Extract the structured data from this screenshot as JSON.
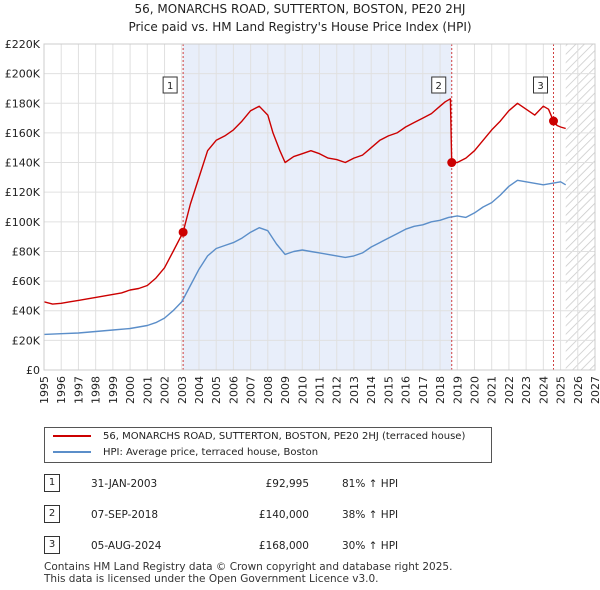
{
  "title_line1": "56, MONARCHS ROAD, SUTTERTON, BOSTON, PE20 2HJ",
  "title_line2": "Price paid vs. HM Land Registry's House Price Index (HPI)",
  "chart_data": {
    "type": "line",
    "xlim": [
      1995,
      2027
    ],
    "ylim": [
      0,
      220000
    ],
    "x_ticks": [
      1995,
      1996,
      1997,
      1998,
      1999,
      2000,
      2001,
      2002,
      2003,
      2004,
      2005,
      2006,
      2007,
      2008,
      2009,
      2010,
      2011,
      2012,
      2013,
      2014,
      2015,
      2016,
      2017,
      2018,
      2019,
      2020,
      2021,
      2022,
      2023,
      2024,
      2025,
      2026,
      2027
    ],
    "y_ticks": [
      0,
      20000,
      40000,
      60000,
      80000,
      100000,
      120000,
      140000,
      160000,
      180000,
      200000,
      220000
    ],
    "y_tick_labels": [
      "£0",
      "£20K",
      "£40K",
      "£60K",
      "£80K",
      "£100K",
      "£120K",
      "£140K",
      "£160K",
      "£180K",
      "£200K",
      "£220K"
    ],
    "ownership_shade": [
      2003.08,
      2018.68
    ],
    "data_end": 2025.3,
    "series": [
      {
        "name": "56, MONARCHS ROAD, SUTTERTON, BOSTON, PE20 2HJ (terraced house)",
        "color": "#cc0000",
        "x": [
          1995,
          1995.5,
          1996,
          1996.5,
          1997,
          1997.5,
          1998,
          1998.5,
          1999,
          1999.5,
          2000,
          2000.5,
          2001,
          2001.5,
          2002,
          2002.5,
          2003.08,
          2003.5,
          2004,
          2004.5,
          2005,
          2005.5,
          2006,
          2006.5,
          2007,
          2007.5,
          2008,
          2008.3,
          2008.7,
          2009,
          2009.5,
          2010,
          2010.5,
          2011,
          2011.5,
          2012,
          2012.5,
          2013,
          2013.5,
          2014,
          2014.5,
          2015,
          2015.5,
          2016,
          2016.5,
          2017,
          2017.5,
          2018,
          2018.3,
          2018.6,
          2018.68,
          2019,
          2019.5,
          2020,
          2020.5,
          2021,
          2021.5,
          2022,
          2022.5,
          2023,
          2023.5,
          2024,
          2024.3,
          2024.59,
          2024.8,
          2025,
          2025.3
        ],
        "values": [
          46000,
          44500,
          45000,
          46000,
          47000,
          48000,
          49000,
          50000,
          51000,
          52000,
          54000,
          55000,
          57000,
          62000,
          69000,
          80000,
          92995,
          112000,
          130000,
          148000,
          155000,
          158000,
          162000,
          168000,
          175000,
          178000,
          172000,
          160000,
          148000,
          140000,
          144000,
          146000,
          148000,
          146000,
          143000,
          142000,
          140000,
          143000,
          145000,
          150000,
          155000,
          158000,
          160000,
          164000,
          167000,
          170000,
          173000,
          178000,
          181000,
          183000,
          140000,
          140000,
          143000,
          148000,
          155000,
          162000,
          168000,
          175000,
          180000,
          176000,
          172000,
          178000,
          176000,
          168000,
          165000,
          164000,
          163000
        ]
      },
      {
        "name": "HPI: Average price, terraced house, Boston",
        "color": "#5b8ec9",
        "x": [
          1995,
          1996,
          1997,
          1998,
          1999,
          2000,
          2001,
          2001.5,
          2002,
          2002.5,
          2003,
          2003.5,
          2004,
          2004.5,
          2005,
          2005.5,
          2006,
          2006.5,
          2007,
          2007.5,
          2008,
          2008.5,
          2009,
          2009.5,
          2010,
          2010.5,
          2011,
          2011.5,
          2012,
          2012.5,
          2013,
          2013.5,
          2014,
          2014.5,
          2015,
          2015.5,
          2016,
          2016.5,
          2017,
          2017.5,
          2018,
          2018.5,
          2019,
          2019.5,
          2020,
          2020.5,
          2021,
          2021.5,
          2022,
          2022.5,
          2023,
          2023.5,
          2024,
          2024.5,
          2025,
          2025.3
        ],
        "values": [
          24000,
          24500,
          25000,
          26000,
          27000,
          28000,
          30000,
          32000,
          35000,
          40000,
          46000,
          57000,
          68000,
          77000,
          82000,
          84000,
          86000,
          89000,
          93000,
          96000,
          94000,
          85000,
          78000,
          80000,
          81000,
          80000,
          79000,
          78000,
          77000,
          76000,
          77000,
          79000,
          83000,
          86000,
          89000,
          92000,
          95000,
          97000,
          98000,
          100000,
          101000,
          103000,
          104000,
          103000,
          106000,
          110000,
          113000,
          118000,
          124000,
          128000,
          127000,
          126000,
          125000,
          126000,
          127000,
          125000
        ]
      }
    ],
    "transactions": [
      {
        "label": "1",
        "x": 2003.08,
        "y": 92995,
        "date": "31-JAN-2003",
        "price": "£92,995",
        "hpi": "81% ↑ HPI"
      },
      {
        "label": "2",
        "x": 2018.68,
        "y": 140000,
        "date": "07-SEP-2018",
        "price": "£140,000",
        "hpi": "38% ↑ HPI"
      },
      {
        "label": "3",
        "x": 2024.59,
        "y": 168000,
        "date": "05-AUG-2024",
        "price": "£168,000",
        "hpi": "30% ↑ HPI"
      }
    ]
  },
  "footer_line1": "Contains HM Land Registry data © Crown copyright and database right 2025.",
  "footer_line2": "This data is licensed under the Open Government Licence v3.0."
}
